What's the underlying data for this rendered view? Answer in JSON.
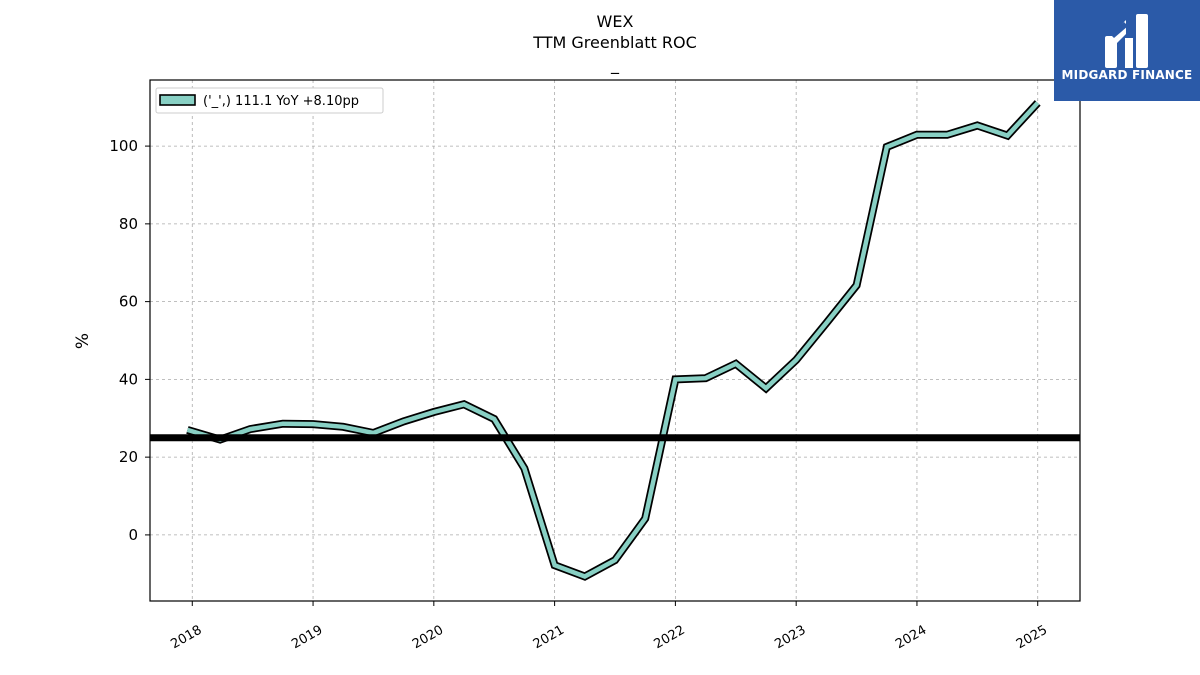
{
  "chart_data": {
    "type": "line",
    "title": "WEX",
    "subtitle": "TTM Greenblatt ROC",
    "subtitle2": "_",
    "xlabel": "",
    "ylabel": "%",
    "ylim": [
      -17,
      117
    ],
    "xlim": [
      2017.65,
      2025.35
    ],
    "y_ticks": [
      0,
      20,
      40,
      60,
      80,
      100
    ],
    "x_ticks": [
      {
        "value": 2018,
        "label": "2018"
      },
      {
        "value": 2019,
        "label": "2019"
      },
      {
        "value": 2020,
        "label": "2020"
      },
      {
        "value": 2021,
        "label": "2021"
      },
      {
        "value": 2022,
        "label": "2022"
      },
      {
        "value": 2023,
        "label": "2023"
      },
      {
        "value": 2024,
        "label": "2024"
      },
      {
        "value": 2025,
        "label": "2025"
      }
    ],
    "grid": true,
    "legend_position": "top-left",
    "series": [
      {
        "name": "('_',) 111.1 YoY +8.10pp",
        "color": "#88d0c4",
        "edge_color": "#000000",
        "x": [
          2017.96,
          2018.23,
          2018.48,
          2018.75,
          2019.0,
          2019.25,
          2019.5,
          2019.75,
          2020.0,
          2020.25,
          2020.5,
          2020.75,
          2021.0,
          2021.25,
          2021.5,
          2021.75,
          2022.0,
          2022.25,
          2022.5,
          2022.75,
          2023.0,
          2023.25,
          2023.5,
          2023.75,
          2024.0,
          2024.25,
          2024.5,
          2024.75,
          2025.0
        ],
        "values": [
          27.0,
          24.5,
          27.2,
          28.6,
          28.5,
          27.8,
          26.2,
          29.2,
          31.6,
          33.6,
          29.8,
          17.1,
          -7.8,
          -10.7,
          -6.5,
          4.2,
          40.0,
          40.3,
          44.0,
          37.7,
          45.0,
          54.5,
          64.2,
          99.8,
          102.9,
          102.9,
          105.3,
          102.7,
          111.1
        ]
      }
    ],
    "reference_line": {
      "value": 25,
      "color": "#000000"
    }
  },
  "logo": {
    "text": "MIDGARD FINANCE",
    "bg_color": "#2b5aa8"
  }
}
